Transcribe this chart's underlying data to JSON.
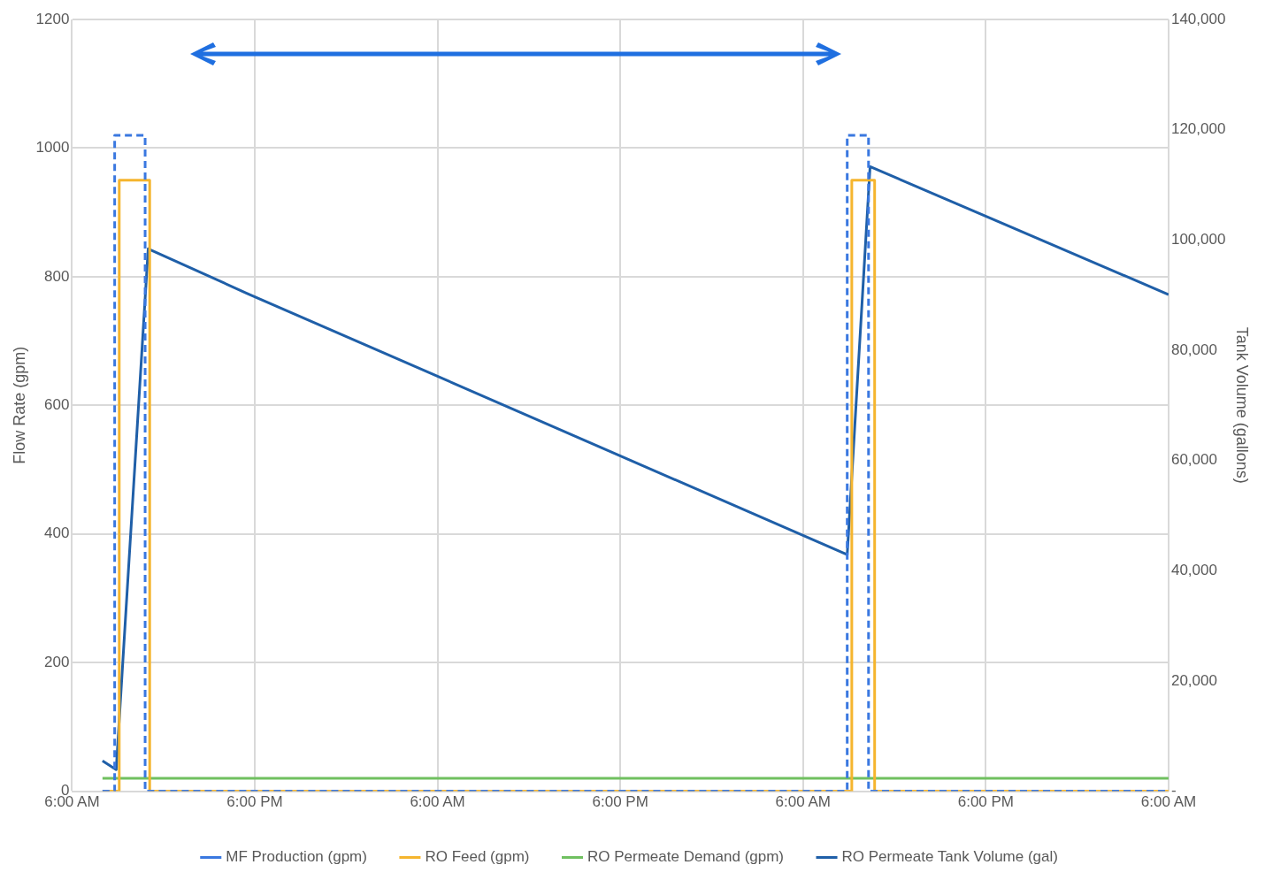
{
  "chart_data": {
    "type": "line",
    "xlabel": null,
    "ylabel": "Flow Rate (gpm)",
    "y2label": "Tank Volume (gallons)",
    "xlim": [
      "--01-01T06:00",
      "--01-04T06:00"
    ],
    "xticks": [
      {
        "value": "--01-01T06:00",
        "label": "6:00 AM"
      },
      {
        "value": "--01-01T18:00",
        "label": "6:00 PM"
      },
      {
        "value": "--01-02T06:00",
        "label": "6:00 AM"
      },
      {
        "value": "--01-02T18:00",
        "label": "6:00 PM"
      },
      {
        "value": "--01-03T06:00",
        "label": "6:00 AM"
      },
      {
        "value": "--01-03T18:00",
        "label": "6:00 PM"
      },
      {
        "value": "--01-04T06:00",
        "label": "6:00 AM"
      }
    ],
    "ylim": [
      0,
      1200
    ],
    "yticks": [
      0,
      200,
      400,
      600,
      800,
      1000,
      1200
    ],
    "y2lim": [
      0,
      140000
    ],
    "y2ticks": [
      {
        "value": 0,
        "label": "-"
      },
      {
        "value": 20000,
        "label": "20,000"
      },
      {
        "value": 40000,
        "label": "40,000"
      },
      {
        "value": 60000,
        "label": "60,000"
      },
      {
        "value": 80000,
        "label": "80,000"
      },
      {
        "value": 100000,
        "label": "100,000"
      },
      {
        "value": 120000,
        "label": "120,000"
      },
      {
        "value": 140000,
        "label": "140,000"
      }
    ],
    "grid": true,
    "legend": "bottom",
    "marker": "none",
    "series": [
      {
        "name": "MF Production (gpm)",
        "color": "#3a78e0",
        "line_style": "dashed",
        "x": [
          "--01-01T08:00",
          "--01-01T08:48",
          "--01-01T08:48",
          "--01-01T10:48",
          "--01-01T10:48",
          "--01-03T08:54",
          "--01-03T08:54",
          "--01-03T10:18",
          "--01-03T10:18",
          "--01-04T06:00"
        ],
        "values": [
          0,
          0,
          1020,
          1020,
          0,
          0,
          1020,
          1020,
          0,
          0
        ]
      },
      {
        "name": "RO Feed (gpm)",
        "color": "#f5b52e",
        "line_style": "solid",
        "x": [
          "--01-01T08:00",
          "--01-01T09:06",
          "--01-01T09:06",
          "--01-01T11:06",
          "--01-01T11:06",
          "--01-03T09:12",
          "--01-03T09:12",
          "--01-03T10:42",
          "--01-03T10:42",
          "--01-04T06:00"
        ],
        "values": [
          0,
          0,
          950,
          950,
          0,
          0,
          950,
          950,
          0,
          0
        ]
      },
      {
        "name": "RO Permeate Demand (gpm)",
        "color": "#70c060",
        "line_style": "solid",
        "x": [
          "--01-01T08:00",
          "--01-04T06:00"
        ],
        "values": [
          20,
          20
        ]
      },
      {
        "name": "RO Permeate Tank Volume (gal)",
        "color": "#1f5fa8",
        "line_style": "solid",
        "axis": "y2",
        "x": [
          "--01-01T08:00",
          "--01-01T08:54",
          "--01-01T11:00",
          "--01-01T17:30",
          "--01-03T08:54",
          "--01-03T10:24",
          "--01-04T06:00"
        ],
        "values": [
          5500,
          3900,
          98400,
          90300,
          42900,
          113300,
          90100
        ]
      }
    ]
  }
}
